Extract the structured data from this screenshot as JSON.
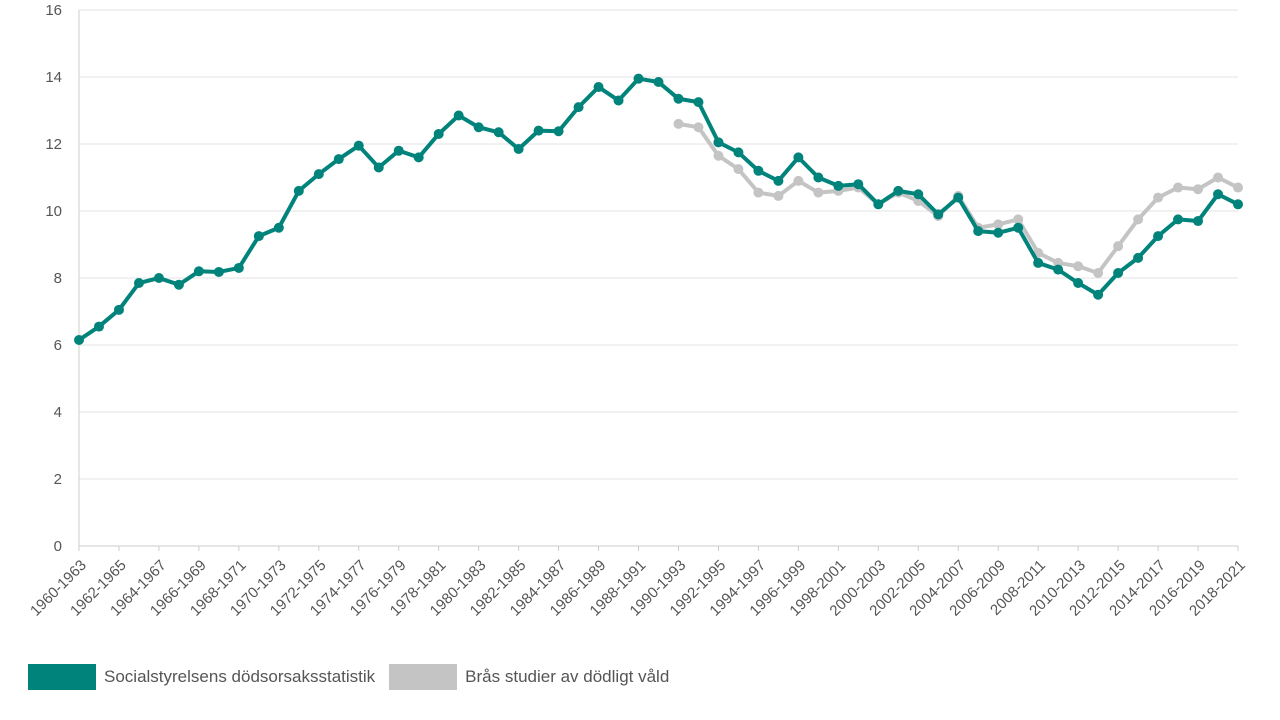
{
  "chart_data": {
    "type": "line",
    "x": [
      "1960-1963",
      "1961-1964",
      "1962-1965",
      "1963-1966",
      "1964-1967",
      "1965-1968",
      "1966-1969",
      "1967-1970",
      "1968-1971",
      "1969-1972",
      "1970-1973",
      "1971-1974",
      "1972-1975",
      "1973-1976",
      "1974-1977",
      "1975-1978",
      "1976-1979",
      "1977-1980",
      "1978-1981",
      "1979-1982",
      "1980-1983",
      "1981-1984",
      "1982-1985",
      "1983-1986",
      "1984-1987",
      "1985-1988",
      "1986-1989",
      "1987-1990",
      "1988-1991",
      "1989-1992",
      "1990-1993",
      "1991-1994",
      "1992-1995",
      "1993-1996",
      "1994-1997",
      "1995-1998",
      "1996-1999",
      "1997-2000",
      "1998-2001",
      "1999-2002",
      "2000-2003",
      "2001-2004",
      "2002-2005",
      "2003-2006",
      "2004-2007",
      "2005-2008",
      "2006-2009",
      "2007-2010",
      "2008-2011",
      "2009-2012",
      "2010-2013",
      "2011-2014",
      "2012-2015",
      "2013-2016",
      "2014-2017",
      "2015-2018",
      "2016-2019",
      "2017-2020",
      "2018-2021"
    ],
    "xtick_labels": [
      "1960-1963",
      "1962-1965",
      "1964-1967",
      "1966-1969",
      "1968-1971",
      "1970-1973",
      "1972-1975",
      "1974-1977",
      "1976-1979",
      "1978-1981",
      "1980-1983",
      "1982-1985",
      "1984-1987",
      "1986-1989",
      "1988-1991",
      "1990-1993",
      "1992-1995",
      "1994-1997",
      "1996-1999",
      "1998-2001",
      "2000-2003",
      "2002-2005",
      "2004-2007",
      "2006-2009",
      "2008-2011",
      "2010-2013",
      "2012-2015",
      "2014-2017",
      "2016-2019",
      "2018-2021"
    ],
    "series": [
      {
        "name": "Socialstyrelsens dödsorsaksstatistik",
        "color": "#00837a",
        "values": [
          6.15,
          6.55,
          7.05,
          7.85,
          8.0,
          7.8,
          8.2,
          8.18,
          8.3,
          9.25,
          9.5,
          10.6,
          11.1,
          11.55,
          11.95,
          11.3,
          11.8,
          11.6,
          12.3,
          12.85,
          12.5,
          12.35,
          11.85,
          12.4,
          12.38,
          13.1,
          13.7,
          13.3,
          13.95,
          13.85,
          13.35,
          13.25,
          12.05,
          11.75,
          11.2,
          10.9,
          11.6,
          11.0,
          10.75,
          10.8,
          10.2,
          10.6,
          10.5,
          9.9,
          10.4,
          9.4,
          9.35,
          9.5,
          8.45,
          8.25,
          7.85,
          7.5,
          8.15,
          8.6,
          9.25,
          9.75,
          9.7,
          10.5,
          10.2
        ]
      },
      {
        "name": "Brås studier av dödligt våld",
        "color": "#c4c4c4",
        "values": [
          null,
          null,
          null,
          null,
          null,
          null,
          null,
          null,
          null,
          null,
          null,
          null,
          null,
          null,
          null,
          null,
          null,
          null,
          null,
          null,
          null,
          null,
          null,
          null,
          null,
          null,
          null,
          null,
          null,
          null,
          12.6,
          12.5,
          11.65,
          11.25,
          10.55,
          10.45,
          10.9,
          10.55,
          10.6,
          10.7,
          10.2,
          10.55,
          10.3,
          9.85,
          10.45,
          9.5,
          9.6,
          9.75,
          8.75,
          8.45,
          8.35,
          8.15,
          8.95,
          9.75,
          10.4,
          10.7,
          10.65,
          11.0,
          10.7
        ]
      }
    ],
    "ylim": [
      0,
      16
    ],
    "yticks": [
      0,
      2,
      4,
      6,
      8,
      10,
      12,
      14,
      16
    ],
    "grid": true,
    "legend_position": "bottom-left"
  }
}
